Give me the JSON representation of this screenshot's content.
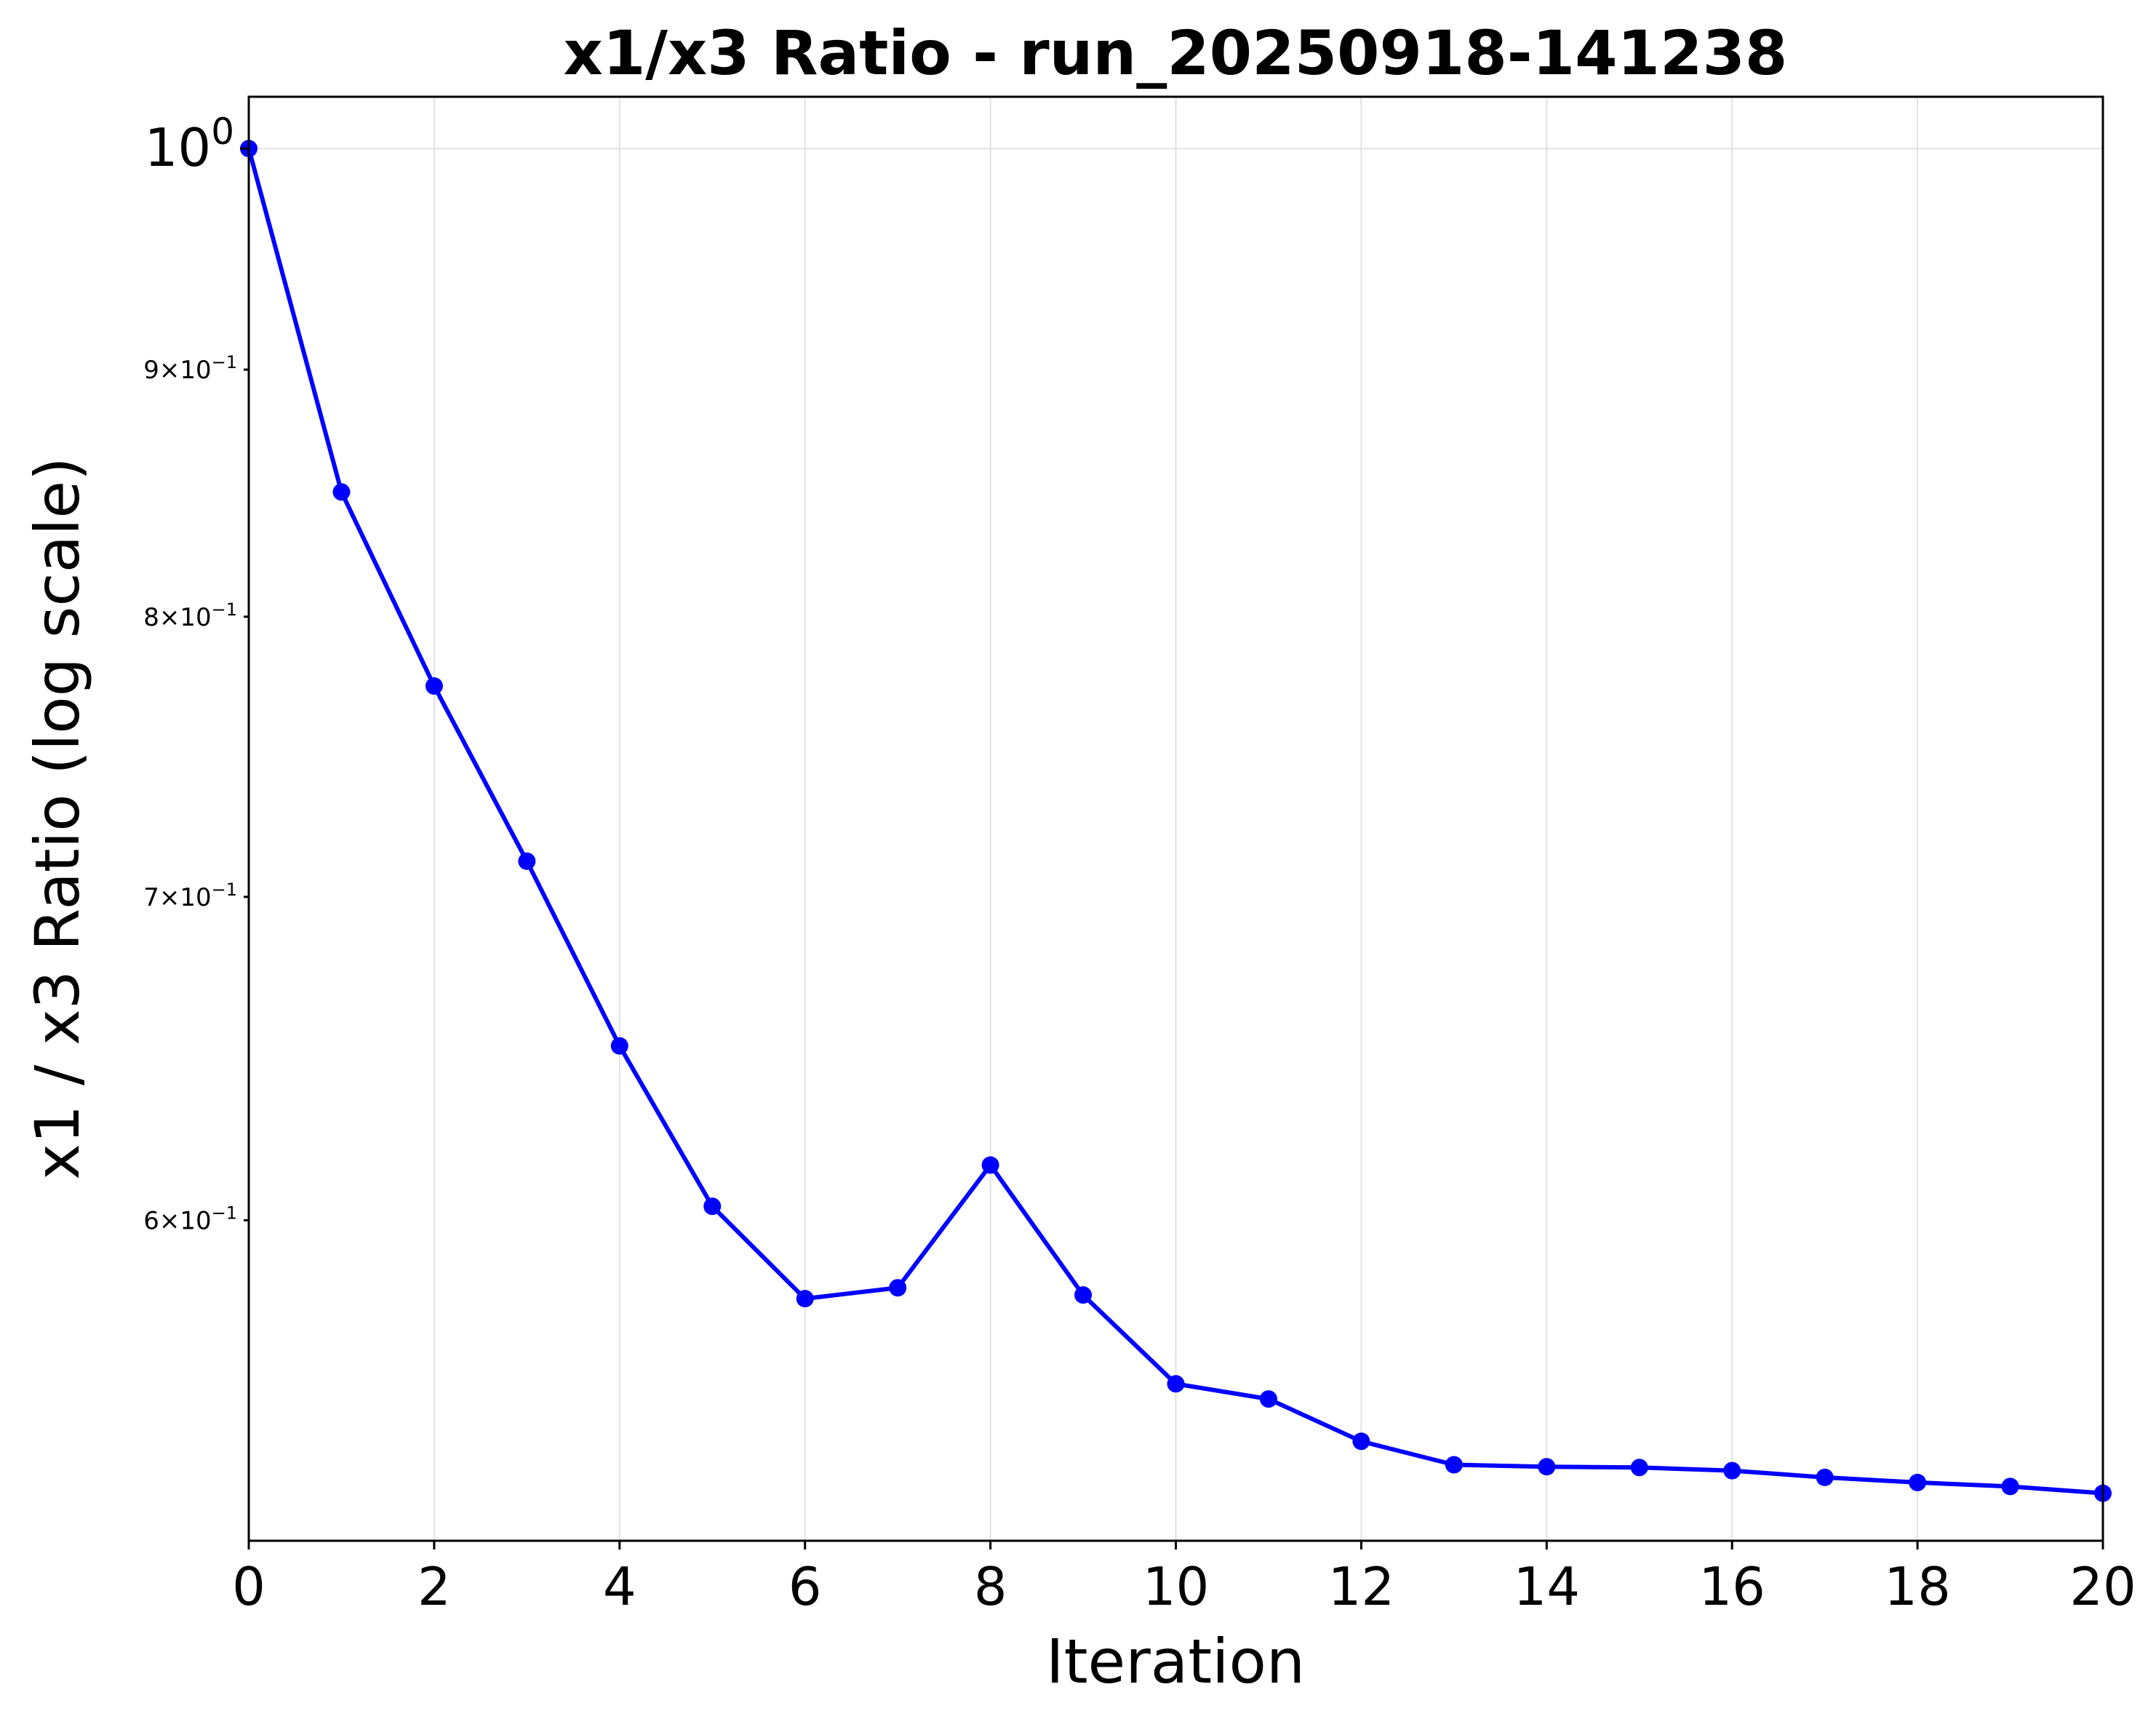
{
  "chart_data": {
    "type": "line",
    "title": "x1/x3 Ratio - run_20250918-141238",
    "xlabel": "Iteration",
    "ylabel": "x1 / x3 Ratio (log scale)",
    "yscale": "log",
    "grid": true,
    "xlim": [
      0,
      20
    ],
    "ylim": [
      0.515,
      1.025
    ],
    "x_ticks": [
      0,
      2,
      4,
      6,
      8,
      10,
      12,
      14,
      16,
      18,
      20
    ],
    "y_ticks_major": [
      {
        "value": 1.0,
        "base": "10",
        "exp": "0"
      }
    ],
    "y_ticks_minor": [
      {
        "value": 0.9,
        "mant": "9",
        "base": "10",
        "exp": "−1"
      },
      {
        "value": 0.8,
        "mant": "8",
        "base": "10",
        "exp": "−1"
      },
      {
        "value": 0.7,
        "mant": "7",
        "base": "10",
        "exp": "−1"
      },
      {
        "value": 0.6,
        "mant": "6",
        "base": "10",
        "exp": "−1"
      }
    ],
    "series": [
      {
        "color": "#0000ff",
        "marker": "circle",
        "x": [
          0,
          1,
          2,
          3,
          4,
          5,
          6,
          7,
          8,
          9,
          10,
          11,
          12,
          13,
          14,
          15,
          16,
          17,
          18,
          19,
          20
        ],
        "y": [
          1.0,
          0.849,
          0.774,
          0.712,
          0.652,
          0.604,
          0.578,
          0.581,
          0.616,
          0.579,
          0.555,
          0.551,
          0.54,
          0.534,
          0.5335,
          0.5333,
          0.5325,
          0.5308,
          0.5295,
          0.5285,
          0.5268
        ]
      }
    ]
  }
}
